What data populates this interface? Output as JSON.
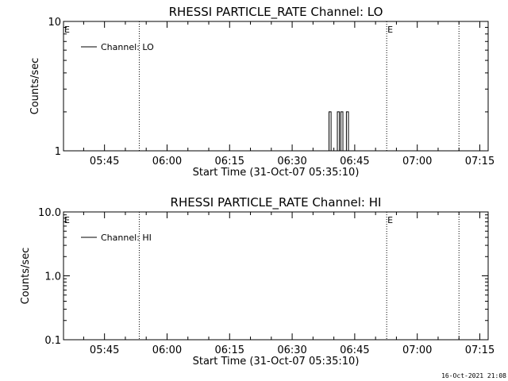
{
  "footer_timestamp": "16-Oct-2021 21:08",
  "chart_data": [
    {
      "type": "line",
      "title": "RHESSI PARTICLE_RATE Channel: LO",
      "xlabel": "Start Time (31-Oct-07 05:35:10)",
      "ylabel": "Counts/sec",
      "xlim": [
        "05:35:10",
        "07:17:00"
      ],
      "x_ticks": [
        "05:45",
        "06:00",
        "06:15",
        "06:30",
        "06:45",
        "07:00",
        "07:15"
      ],
      "yscale": "log",
      "ylim": [
        1,
        10
      ],
      "y_ticks": [
        "1",
        "10"
      ],
      "legend": "top-left",
      "series": [
        {
          "name": "Channel: LO",
          "color": "#000000",
          "points": [
            [
              "06:38:50",
              1
            ],
            [
              "06:38:50",
              2
            ],
            [
              "06:39:20",
              2
            ],
            [
              "06:39:20",
              1
            ],
            [
              "06:40:50",
              1
            ],
            [
              "06:40:50",
              2
            ],
            [
              "06:41:20",
              2
            ],
            [
              "06:41:20",
              1
            ],
            [
              "06:41:40",
              1
            ],
            [
              "06:41:40",
              2
            ],
            [
              "06:42:10",
              2
            ],
            [
              "06:42:10",
              1
            ],
            [
              "06:43:00",
              1
            ],
            [
              "06:43:00",
              2
            ],
            [
              "06:43:30",
              2
            ],
            [
              "06:43:30",
              1
            ]
          ]
        }
      ],
      "markers": [
        {
          "time": "05:35:10",
          "label": "E"
        },
        {
          "time": "05:53:20",
          "label": ""
        },
        {
          "time": "06:52:40",
          "label": "E"
        },
        {
          "time": "07:10:00",
          "label": ""
        }
      ]
    },
    {
      "type": "line",
      "title": "RHESSI PARTICLE_RATE Channel: HI",
      "xlabel": "Start Time (31-Oct-07 05:35:10)",
      "ylabel": "Counts/sec",
      "xlim": [
        "05:35:10",
        "07:17:00"
      ],
      "x_ticks": [
        "05:45",
        "06:00",
        "06:15",
        "06:30",
        "06:45",
        "07:00",
        "07:15"
      ],
      "yscale": "log",
      "ylim": [
        0.1,
        10
      ],
      "y_ticks": [
        "0.1",
        "1.0",
        "10.0"
      ],
      "legend": "top-left",
      "series": [
        {
          "name": "Channel: HI",
          "color": "#000000",
          "points": []
        }
      ],
      "markers": [
        {
          "time": "05:35:10",
          "label": "E"
        },
        {
          "time": "05:53:20",
          "label": ""
        },
        {
          "time": "06:52:40",
          "label": "E"
        },
        {
          "time": "07:10:00",
          "label": ""
        }
      ]
    }
  ]
}
